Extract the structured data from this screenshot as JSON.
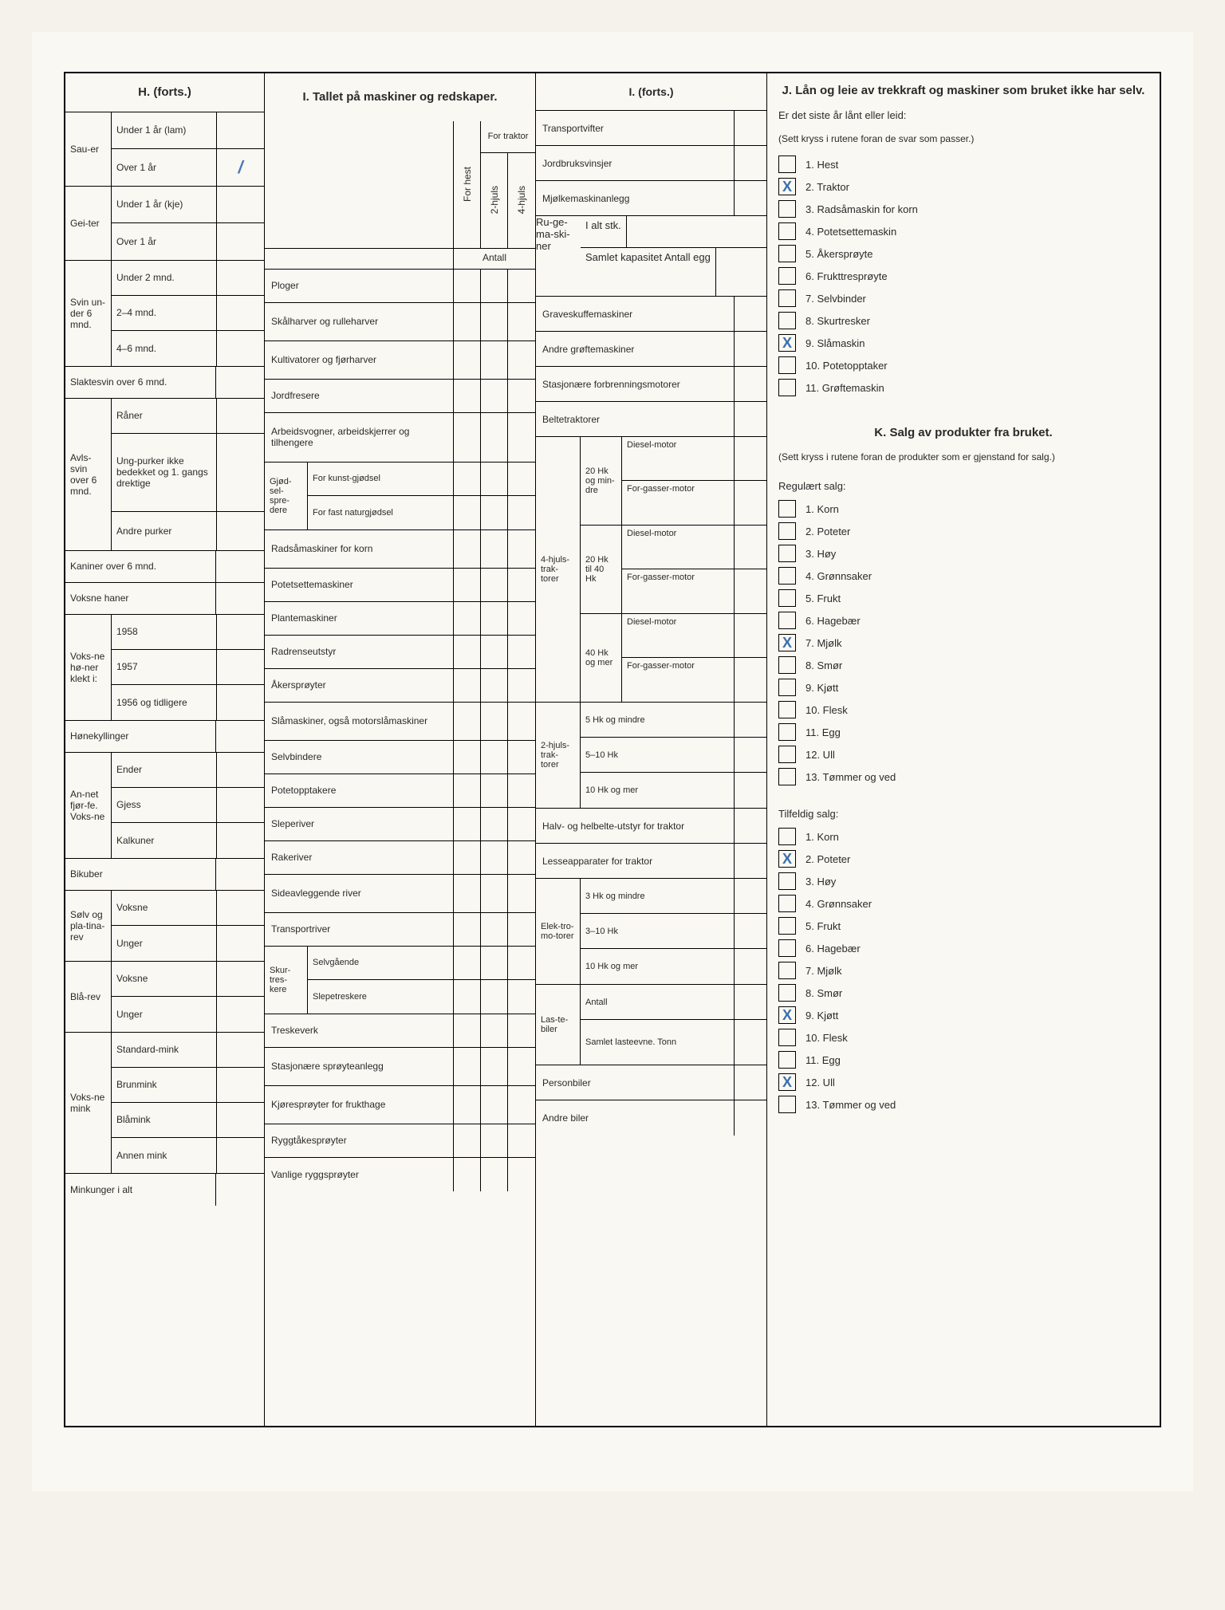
{
  "h": {
    "title": "H. (forts.)",
    "grp_sau": "Sau-er",
    "sau_u1": "Under 1 år (lam)",
    "sau_o1": "Over 1 år",
    "sau_o1_val": "/",
    "grp_gei": "Gei-ter",
    "gei_u1": "Under 1 år (kje)",
    "gei_o1": "Over 1 år",
    "grp_svin6": "Svin un-der 6 mnd.",
    "svin_u2": "Under 2 mnd.",
    "svin_24": "2–4 mnd.",
    "svin_46": "4–6 mnd.",
    "slakte": "Slaktesvin over 6 mnd.",
    "grp_avls": "Avls-svin over 6 mnd.",
    "raner": "Råner",
    "ungpurker": "Ung-purker ikke bedekket og 1. gangs drektige",
    "andre_purker": "Andre purker",
    "kaniner": "Kaniner over 6 mnd.",
    "voksne_haner": "Voksne haner",
    "grp_honer": "Voks-ne hø-ner klekt i:",
    "h1958": "1958",
    "h1957": "1957",
    "h1956": "1956 og tidligere",
    "honekyll": "Hønekyllinger",
    "grp_fjor": "An-net fjør-fe. Voks-ne",
    "ender": "Ender",
    "gjess": "Gjess",
    "kalkuner": "Kalkuner",
    "bikuber": "Bikuber",
    "grp_solv": "Sølv og pla-tina-rev",
    "voksne": "Voksne",
    "unger": "Unger",
    "grp_bla": "Blå-rev",
    "grp_mink": "Voks-ne mink",
    "stdmink": "Standard-mink",
    "brunmink": "Brunmink",
    "blamink": "Blåmink",
    "annenmink": "Annen mink",
    "minkunger": "Minkunger i alt"
  },
  "i1": {
    "title": "I. Tallet på maskiner og redskaper.",
    "for_traktor": "For traktor",
    "for_hest": "For hest",
    "hjuls2": "2-hjuls",
    "hjuls4": "4-hjuls",
    "antall": "Antall",
    "ploger": "Ploger",
    "skalharver": "Skålharver og rulleharver",
    "kultivatorer": "Kultivatorer og fjørharver",
    "jordfresere": "Jordfresere",
    "arbeidsvogner": "Arbeidsvogner, arbeidskjerrer og tilhengere",
    "gjodsel": "Gjød-sel-spre-dere",
    "kunstgj": "For kunst-gjødsel",
    "naturgj": "For fast naturgjødsel",
    "radsa": "Radsåmaskiner for korn",
    "potetsette": "Potetsettemaskiner",
    "plante": "Plantemaskiner",
    "radrense": "Radrenseutstyr",
    "akerspr": "Åkersprøyter",
    "slamask": "Slåmaskiner, også motorslåmaskiner",
    "selvbind": "Selvbindere",
    "potetoppt": "Potetopptakere",
    "sleperiver": "Sleperiver",
    "rakeriver": "Rakeriver",
    "sideavl": "Sideavleggende river",
    "transportriver": "Transportriver",
    "skurtr": "Skur-tres-kere",
    "selvg": "Selvgående",
    "slepetr": "Slepetreskere",
    "treskeverk": "Treskeverk",
    "stasjonaere": "Stasjonære sprøyteanlegg",
    "kjorespr": "Kjøresprøyter for frukthage",
    "ryggtake": "Ryggtåkesprøyter",
    "vanlige": "Vanlige ryggsprøyter"
  },
  "i2": {
    "title": "I. (forts.)",
    "transportvifter": "Transportvifter",
    "jordbruksvinsjer": "Jordbruksvinsjer",
    "mjolkemask": "Mjølkemaskinanlegg",
    "rugemask": "Ru-ge-ma-ski-ner",
    "ialt": "I alt stk.",
    "samlet": "Samlet kapasitet Antall egg",
    "graveskuffe": "Graveskuffemaskiner",
    "andre_groft": "Andre grøftemaskiner",
    "stasjonaere_forbr": "Stasjonære forbrenningsmotorer",
    "beltetraktorer": "Beltetraktorer",
    "hk20": "20 Hk og min-dre",
    "hk2040": "20 Hk til 40 Hk",
    "hk40": "40 Hk og mer",
    "diesel": "Diesel-motor",
    "forgasser": "For-gasser-motor",
    "hjuls4trak": "4-hjuls-trak-torer",
    "hjuls2trak": "2-hjuls-trak-torer",
    "hk5m": "5 Hk og mindre",
    "hk510": "5–10 Hk",
    "hk10m": "10 Hk og mer",
    "halvbelte": "Halv- og helbelte-utstyr for traktor",
    "lesseapp": "Lesseapparater for traktor",
    "elektro": "Elek-tro-mo-torer",
    "hk3m": "3 Hk og mindre",
    "hk310": "3–10 Hk",
    "lastebiler": "Las-te-biler",
    "antall_l": "Antall",
    "samlet_l": "Samlet lasteevne. Tonn",
    "personbiler": "Personbiler",
    "andrebiler": "Andre biler"
  },
  "j": {
    "title": "J. Lån og leie av trekkraft og maskiner som bruket ikke har selv.",
    "q": "Er det siste år lånt eller leid:",
    "instr": "(Sett kryss i rutene foran de svar som passer.)",
    "items": [
      "1. Hest",
      "2. Traktor",
      "3. Radsåmaskin for korn",
      "4. Potetsettemaskin",
      "5. Åkersprøyte",
      "6. Frukttresprøyte",
      "7. Selvbinder",
      "8. Skurtresker",
      "9. Slåmaskin",
      "10. Potetopptaker",
      "11. Grøftemaskin"
    ],
    "checked": [
      1,
      8
    ]
  },
  "k": {
    "title": "K. Salg av produkter fra bruket.",
    "instr": "(Sett kryss i rutene foran de produkter som er gjenstand for salg.)",
    "reg_title": "Regulært salg:",
    "items": [
      "1. Korn",
      "2. Poteter",
      "3. Høy",
      "4. Grønnsaker",
      "5. Frukt",
      "6. Hagebær",
      "7. Mjølk",
      "8. Smør",
      "9. Kjøtt",
      "10. Flesk",
      "11. Egg",
      "12. Ull",
      "13. Tømmer og ved"
    ],
    "reg_checked": [
      6
    ],
    "tilf_title": "Tilfeldig salg:",
    "tilf_checked": [
      1,
      8,
      11
    ]
  }
}
